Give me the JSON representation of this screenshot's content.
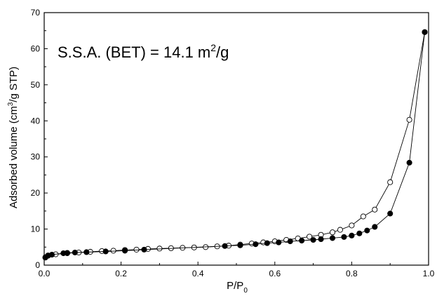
{
  "chart_data": {
    "type": "scatter",
    "title": "",
    "annotation": {
      "prefix": "S.S.A. (BET) = 14.1 m",
      "superscript": "2",
      "suffix": "/g"
    },
    "xlabel": {
      "main": "P/P",
      "sub": "0"
    },
    "ylabel": {
      "pre": "Adsorbed volume (cm",
      "sup": "3",
      "post": "/g STP)"
    },
    "xlim": [
      0,
      1.0
    ],
    "ylim": [
      0,
      70
    ],
    "xticks": [
      0.0,
      0.2,
      0.4,
      0.6,
      0.8,
      1.0
    ],
    "xtick_labels": [
      "0.0",
      "0.2",
      "0.4",
      "0.6",
      "0.8",
      "1.0"
    ],
    "yticks": [
      0,
      10,
      20,
      30,
      40,
      50,
      60,
      70
    ],
    "ytick_labels": [
      "0",
      "10",
      "20",
      "30",
      "40",
      "50",
      "60",
      "70"
    ],
    "grid": false,
    "legend": "none",
    "series": [
      {
        "marker": "filled-circle",
        "color": "#000000",
        "x": [
          0.003,
          0.01,
          0.02,
          0.05,
          0.06,
          0.08,
          0.11,
          0.16,
          0.21,
          0.26,
          0.47,
          0.51,
          0.55,
          0.58,
          0.61,
          0.64,
          0.67,
          0.7,
          0.72,
          0.75,
          0.78,
          0.8,
          0.82,
          0.84,
          0.86,
          0.9,
          0.95,
          0.99
        ],
        "y": [
          2.1,
          2.6,
          2.9,
          3.3,
          3.4,
          3.5,
          3.6,
          3.8,
          4.0,
          4.3,
          5.3,
          5.5,
          5.8,
          6.1,
          6.3,
          6.6,
          6.8,
          7.0,
          7.2,
          7.5,
          7.8,
          8.2,
          8.8,
          9.6,
          10.6,
          14.3,
          28.4,
          64.6
        ]
      },
      {
        "marker": "open-circle",
        "color": "#000000",
        "x": [
          0.003,
          0.01,
          0.03,
          0.06,
          0.09,
          0.12,
          0.15,
          0.18,
          0.21,
          0.24,
          0.27,
          0.3,
          0.33,
          0.36,
          0.39,
          0.42,
          0.45,
          0.48,
          0.51,
          0.54,
          0.57,
          0.6,
          0.63,
          0.66,
          0.69,
          0.72,
          0.75,
          0.77,
          0.8,
          0.83,
          0.86,
          0.9,
          0.95,
          0.99
        ],
        "y": [
          2.2,
          2.7,
          3.0,
          3.3,
          3.5,
          3.7,
          3.9,
          4.0,
          4.2,
          4.3,
          4.5,
          4.6,
          4.7,
          4.8,
          4.9,
          5.0,
          5.2,
          5.4,
          5.7,
          6.0,
          6.3,
          6.6,
          7.0,
          7.4,
          7.9,
          8.4,
          9.1,
          9.8,
          11.0,
          13.5,
          15.4,
          23.0,
          40.3,
          64.6
        ]
      }
    ]
  }
}
